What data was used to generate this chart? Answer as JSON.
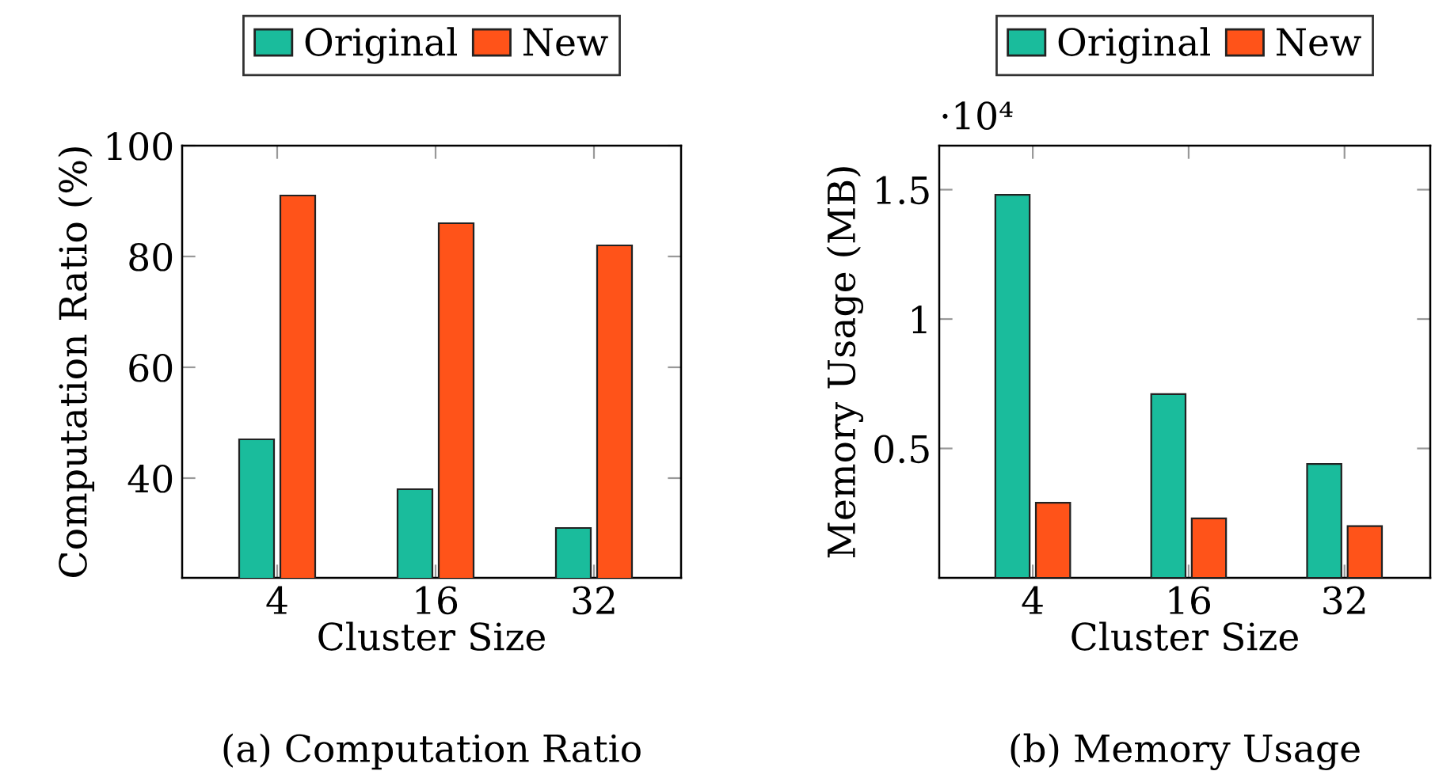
{
  "chart_data": [
    {
      "type": "bar",
      "title": "(a) Computation Ratio",
      "xlabel": "Cluster Size",
      "ylabel": "Computation Ratio (%)",
      "categories": [
        "4",
        "16",
        "32"
      ],
      "series": [
        {
          "name": "Original",
          "color": "#1abc9c",
          "values": [
            47,
            38,
            31
          ]
        },
        {
          "name": "New",
          "color": "#ff5319",
          "values": [
            91,
            86,
            82
          ]
        }
      ],
      "ylim": [
        22,
        100
      ],
      "yticks": [
        40,
        60,
        80,
        100
      ],
      "legend": "top",
      "grid": false
    },
    {
      "type": "bar",
      "title": "(b) Memory Usage",
      "xlabel": "Cluster Size",
      "ylabel": "Memory Usage (MB)",
      "categories": [
        "4",
        "16",
        "32"
      ],
      "series": [
        {
          "name": "Original",
          "color": "#1abc9c",
          "values": [
            1.48,
            0.71,
            0.44
          ]
        },
        {
          "name": "New",
          "color": "#ff5319",
          "values": [
            0.29,
            0.23,
            0.2
          ]
        }
      ],
      "annotations": [
        "·10⁴"
      ],
      "ylim": [
        0,
        1.67
      ],
      "yticks": [
        0.5,
        1,
        1.5
      ],
      "legend": "top",
      "grid": false
    }
  ]
}
